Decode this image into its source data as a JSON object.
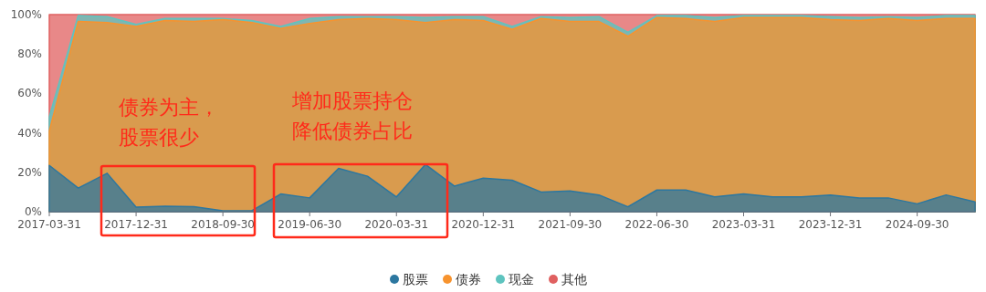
{
  "chart_data": {
    "type": "area",
    "stacked": true,
    "legend": "bottom",
    "categories": [
      "2017-03-31",
      null,
      null,
      "2017-12-31",
      null,
      null,
      "2018-09-30",
      null,
      null,
      "2019-06-30",
      null,
      null,
      "2020-03-31",
      null,
      null,
      "2020-12-31",
      null,
      null,
      "2021-09-30",
      null,
      null,
      "2022-06-30",
      null,
      null,
      "2023-03-31",
      null,
      null,
      "2023-12-31",
      null,
      null,
      "2024-09-30",
      null,
      null
    ],
    "series": [
      {
        "name": "股票",
        "color": "#2c77a0",
        "values": [
          23.5,
          12,
          19.5,
          2.3,
          2.8,
          2.5,
          0.5,
          0.5,
          9,
          7,
          22,
          18,
          7.5,
          24,
          13,
          17,
          16,
          10,
          10.5,
          8.5,
          2.5,
          11,
          11,
          7.5,
          9,
          7.5,
          7.5,
          8.5,
          7,
          7,
          4,
          8.5,
          5
        ]
      },
      {
        "name": "债券",
        "color": "#f7932e",
        "values": [
          17.5,
          84.5,
          76.5,
          91.7,
          94.2,
          94,
          97,
          95.5,
          84,
          88.5,
          75.5,
          80,
          90,
          72,
          84.5,
          80,
          76.5,
          88,
          86,
          88,
          86.5,
          87.5,
          87,
          89,
          89.5,
          91,
          91,
          89,
          90,
          91,
          93,
          89.5,
          93
        ]
      },
      {
        "name": "现金",
        "color": "#5ec4bf",
        "values": [
          7,
          3,
          3,
          1,
          1,
          1.5,
          0.5,
          1,
          1,
          2.5,
          1.5,
          1,
          1.5,
          2.5,
          1.5,
          2,
          1.5,
          1,
          2,
          2.5,
          2,
          1,
          1.5,
          2,
          1,
          1,
          1,
          1.5,
          1.5,
          1,
          1.5,
          1.5,
          1.5
        ]
      },
      {
        "name": "其他",
        "color": "#e06060",
        "values": [
          52,
          0.5,
          1,
          5,
          2,
          2,
          2,
          3,
          6,
          2,
          1,
          1,
          1,
          1.5,
          1,
          1,
          6,
          1,
          1.5,
          1,
          9,
          0.5,
          0.5,
          1.5,
          0.5,
          0.5,
          0.5,
          1,
          1.5,
          1,
          1.5,
          0.5,
          0.5
        ]
      }
    ],
    "ylim": [
      0,
      100
    ],
    "yticks": [
      {
        "value": 0,
        "label": "0%"
      },
      {
        "value": 20,
        "label": "20%"
      },
      {
        "value": 40,
        "label": "40%"
      },
      {
        "value": 60,
        "label": "60%"
      },
      {
        "value": 80,
        "label": "80%"
      },
      {
        "value": 100,
        "label": "100%"
      }
    ],
    "annotations": [
      "债券为主，",
      "股票很少",
      "增加股票持仓",
      "降低债券占比"
    ]
  }
}
